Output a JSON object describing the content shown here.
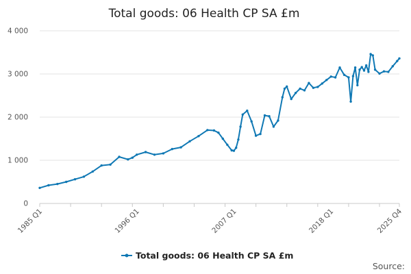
{
  "chart_data": {
    "type": "line",
    "title": "Total goods: 06 Health CP SA £m",
    "xlabel": "",
    "ylabel": "",
    "x_tick_labels": [
      "1985 Q1",
      "1996 Q1",
      "2007 Q1",
      "2018 Q1",
      "2025 Q4"
    ],
    "y_tick_labels": [
      "0",
      "1 000",
      "2 000",
      "3 000",
      "4 000"
    ],
    "ylim": [
      0,
      4000
    ],
    "grid": true,
    "legend_position": "bottom",
    "series": [
      {
        "name": "Total goods: 06 Health CP SA £m",
        "color": "#0f78b4",
        "x": [
          1985.0,
          1986.0,
          1987.0,
          1988.0,
          1989.0,
          1990.0,
          1991.0,
          1992.0,
          1993.0,
          1994.0,
          1995.0,
          1995.5,
          1996.0,
          1997.0,
          1998.0,
          1999.0,
          2000.0,
          2001.0,
          2002.0,
          2003.0,
          2004.0,
          2004.75,
          2005.25,
          2005.75,
          2006.25,
          2006.75,
          2007.0,
          2007.25,
          2007.5,
          2007.75,
          2008.0,
          2008.5,
          2009.0,
          2009.5,
          2010.0,
          2010.5,
          2011.0,
          2011.5,
          2012.0,
          2012.5,
          2012.75,
          2013.0,
          2013.5,
          2014.0,
          2014.5,
          2015.0,
          2015.5,
          2016.0,
          2016.5,
          2017.0,
          2017.5,
          2018.0,
          2018.5,
          2019.0,
          2019.5,
          2020.0,
          2020.25,
          2020.5,
          2020.75,
          2021.0,
          2021.25,
          2021.5,
          2021.75,
          2022.0,
          2022.25,
          2022.5,
          2022.75,
          2023.0,
          2023.5,
          2024.0,
          2024.5,
          2025.0,
          2025.5,
          2025.75
        ],
        "values": [
          360,
          420,
          450,
          500,
          560,
          620,
          740,
          880,
          900,
          1080,
          1020,
          1060,
          1130,
          1190,
          1130,
          1160,
          1260,
          1300,
          1440,
          1560,
          1700,
          1690,
          1640,
          1500,
          1360,
          1230,
          1220,
          1290,
          1480,
          1780,
          2060,
          2150,
          1900,
          1570,
          1610,
          2040,
          2020,
          1780,
          1920,
          2460,
          2660,
          2710,
          2420,
          2560,
          2660,
          2620,
          2790,
          2680,
          2700,
          2780,
          2860,
          2940,
          2920,
          3150,
          2980,
          2920,
          2360,
          2950,
          3150,
          2740,
          3100,
          3160,
          3080,
          3200,
          3050,
          3460,
          3430,
          3100,
          3010,
          3060,
          3050,
          3180,
          3300,
          3360
        ]
      }
    ],
    "annotations": [
      "Source:"
    ]
  }
}
